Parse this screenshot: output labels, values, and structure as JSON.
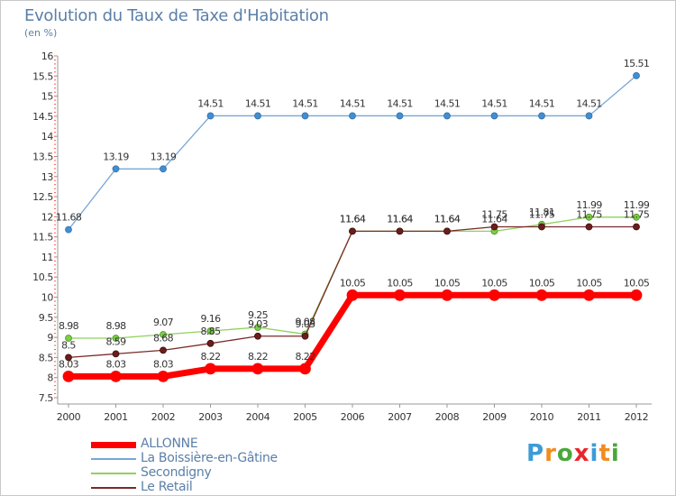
{
  "title": "Evolution du Taux de Taxe d'Habitation",
  "subtitle": "(en %)",
  "logo": {
    "letters": [
      "P",
      "r",
      "o",
      "x",
      "i",
      "t",
      "i"
    ],
    "colors": [
      "#3d9bd8",
      "#f28c1e",
      "#4aa83a",
      "#e8262c",
      "#3d9bd8",
      "#f28c1e",
      "#4aa83a"
    ]
  },
  "chart_data": {
    "type": "line",
    "x": [
      "2000",
      "2001",
      "2002",
      "2003",
      "2004",
      "2005",
      "2006",
      "2007",
      "2008",
      "2009",
      "2010",
      "2011",
      "2012"
    ],
    "ylim": [
      7.5,
      16
    ],
    "yticks": [
      "7.5",
      "8",
      "8.5",
      "9",
      "9.5",
      "10",
      "10.5",
      "11",
      "11.5",
      "12",
      "12.5",
      "13",
      "13.5",
      "14",
      "14.5",
      "15",
      "15.5",
      "16"
    ],
    "grid": false,
    "legend_position": "bottom-left",
    "series": [
      {
        "name": "ALLONNE",
        "values": [
          8.03,
          8.03,
          8.03,
          8.22,
          8.22,
          8.22,
          10.05,
          10.05,
          10.05,
          10.05,
          10.05,
          10.05,
          10.05
        ],
        "labels": [
          "8.03",
          "8.03",
          "8.03",
          "8.22",
          "8.22",
          "8.22",
          "10.05",
          "10.05",
          "10.05",
          "10.05",
          "10.05",
          "10.05",
          "10.05"
        ],
        "color": "#ff0000"
      },
      {
        "name": "La Boissière-en-Gâtine",
        "values": [
          11.68,
          13.19,
          13.19,
          14.51,
          14.51,
          14.51,
          14.51,
          14.51,
          14.51,
          14.51,
          14.51,
          14.51,
          15.51
        ],
        "labels": [
          "11.68",
          "13.19",
          "13.19",
          "14.51",
          "14.51",
          "14.51",
          "14.51",
          "14.51",
          "14.51",
          "14.51",
          "14.51",
          "14.51",
          "15.51"
        ],
        "color": "#76a7d6"
      },
      {
        "name": "Secondigny",
        "values": [
          8.98,
          8.98,
          9.07,
          9.16,
          9.25,
          9.08,
          11.64,
          11.64,
          11.64,
          11.64,
          11.81,
          11.99,
          11.99
        ],
        "labels": [
          "8.98",
          "8.98",
          "9.07",
          "9.16",
          "9.25",
          "9.08",
          "11.64",
          "11.64",
          "11.64",
          "11.64",
          "11.81",
          "11.99",
          "11.99"
        ],
        "color": "#8fd15c"
      },
      {
        "name": "Le Retail",
        "values": [
          8.5,
          8.59,
          8.68,
          8.85,
          9.03,
          9.03,
          11.64,
          11.64,
          11.64,
          11.75,
          11.75,
          11.75,
          11.75
        ],
        "labels": [
          "8.5",
          "8.59",
          "8.68",
          "8.85",
          "9.03",
          "9.03",
          "11.64",
          "11.64",
          "11.64",
          "11.75",
          "11.75",
          "11.75",
          "11.75"
        ],
        "color": "#7a2a2a"
      }
    ]
  }
}
